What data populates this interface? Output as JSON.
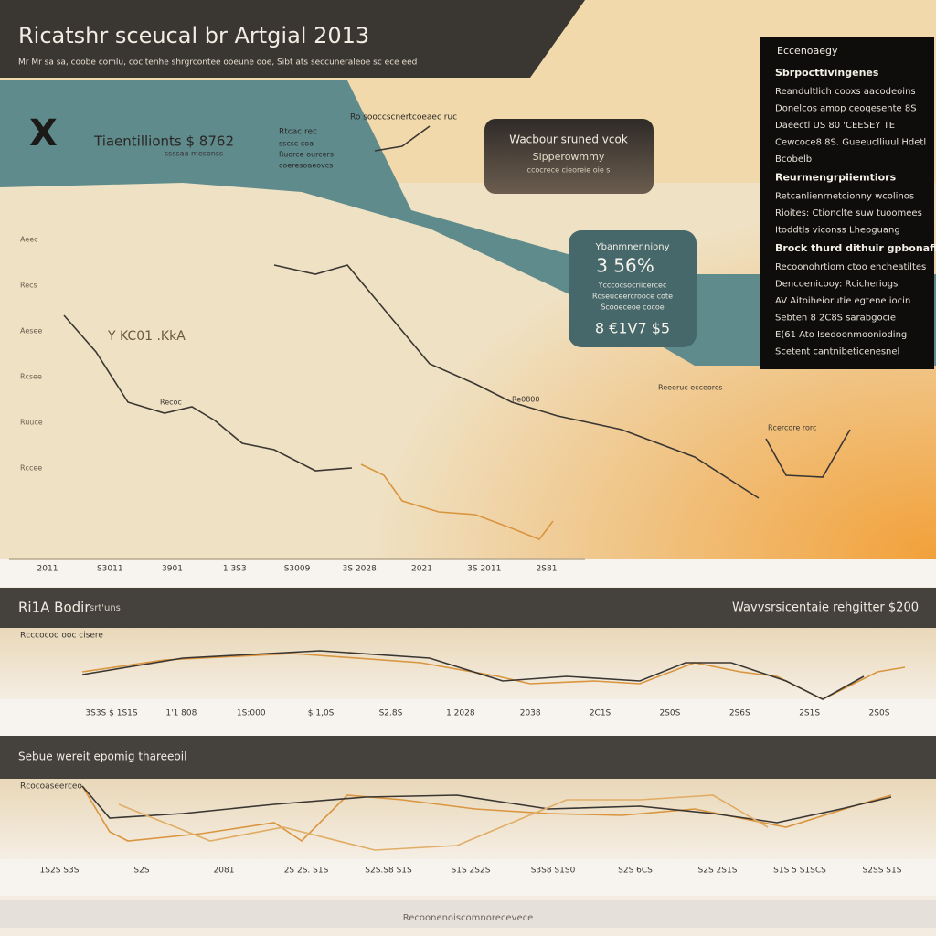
{
  "header": {
    "title": "Ricatshr sceucal br Artgial 2013",
    "subtitle": "Mr Mr sa sa, coobe comlu, cocitenhe shrgrcontee ooeune ooe, Sibt ats seccuneraleoe sc ece eed"
  },
  "badge": "X",
  "main_label": {
    "title": "Tiaentillionts $ 8762",
    "note": "ssssaa mesonss"
  },
  "note_top": {
    "title": "Rtcac rec",
    "lines": [
      "sscsc coa",
      "Ruorce ourcers",
      "coeresoaeovcs"
    ]
  },
  "note_peak": "Ro sooccscnertcoeaec ruc",
  "callout": {
    "title": "Wacbour sruned vcok",
    "subtitle": "Sipperowmmy",
    "note": "ccocrece cieoreie oie s"
  },
  "stat_box": {
    "label": "Ybanmnenniony",
    "value": "3 56%",
    "lines": [
      "Ycccocsocriicercec",
      "Rcseuceercrooce cote",
      "Scooeceoe cocoe"
    ],
    "total": "8 €1V7 $5"
  },
  "mid_label": "Y KC01 .KkA",
  "chart_notes": [
    "Recoc",
    "Re0800",
    "Reeeruc ecceorcs",
    "Rcercore rorc"
  ],
  "y_labels": [
    "Aeec",
    "Recs",
    "Aesee",
    "Rcsee",
    "Ruuce",
    "Rccee"
  ],
  "panel": {
    "heading": "Eccenoaegy",
    "groups": [
      {
        "heading": "Sbrpocttivingenes",
        "lines": [
          "Reandultlich cooxs aacodeoins",
          "Donelcos amop ceoqesente 8S",
          "Daeectl US 80 'CEESEY TE",
          "Cewcoce8 8S. Gueeuclliuul Hdetl",
          "Bcobelb"
        ]
      },
      {
        "heading": "Reurmengrpiiemtiors",
        "lines": [
          "Retcanlienrnetcionny wcolinos",
          "Rioites: Ctionclte suw tuoomees",
          "Itoddtls viconss Lheoguang"
        ]
      },
      {
        "heading": "Brock thurd dithuir gpbonafis",
        "lines": [
          "Recoonohrtiom ctoo encheatiltes",
          "Dencoenicooy: Rcicheriogs",
          "AV Aitoiheiorutie egtene iocin",
          "Sebten 8 2C8S sarabgocie",
          "E(61 Ato Isedoonmoonioding",
          "Scetent cantnibeticenesnel"
        ]
      }
    ]
  },
  "main_x_labels": [
    "2011",
    "S3011",
    "3901",
    "1 3S3",
    "S3009",
    "3S 2028",
    "2021",
    "3S 2011",
    "2S81"
  ],
  "section2": {
    "title": "Ri1A Bodir",
    "tag": "srt'uns",
    "right": "Wavvsrsicentaie rehgitter $200",
    "note": "Rcccocoo ooc cisere",
    "x_labels": [
      "3S3S $ 1S1S",
      "1'1 808",
      "1S:000",
      "$ 1,0S",
      "S2.8S",
      "1 2028",
      "2038",
      "2C1S",
      "2S0S",
      "2S6S",
      "2S1S",
      "2S0S"
    ]
  },
  "section3": {
    "title": "Sebue wereit epomig thareeoil",
    "note": "Rcocoaseerceo",
    "x_labels": [
      "1S2S S3S",
      "S2S",
      "2081",
      "2S 2S. S1S",
      "S2S.S8 S1S",
      "S1S 2S2S",
      "S3S8 S1S0",
      "S2S 6CS",
      "S2S 2S1S",
      "S1S 5 S1SCS",
      "S2SS S1S"
    ]
  },
  "footer": "Recoonenoiscomnorecevece"
}
